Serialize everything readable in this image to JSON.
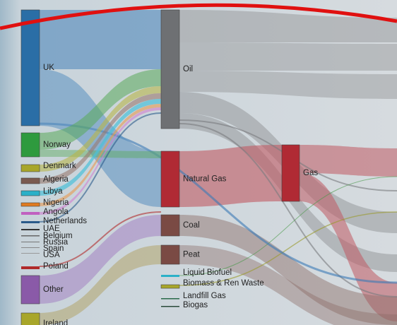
{
  "nodes": [
    {
      "label": "UK",
      "color": "#2a6ea6"
    },
    {
      "label": "Norway",
      "color": "#2e9a3e"
    },
    {
      "label": "Denmark",
      "color": "#a8a62a"
    },
    {
      "label": "Algeria",
      "color": "#7a5a50"
    },
    {
      "label": "Libya",
      "color": "#2bb0c8"
    },
    {
      "label": "Nigeria",
      "color": "#e07a20"
    },
    {
      "label": "Angola",
      "color": "#c060c0"
    },
    {
      "label": "Netherlands",
      "color": "#2a5a8a"
    },
    {
      "label": "UAE",
      "color": "#333333"
    },
    {
      "label": "Belgium",
      "color": "#666666"
    },
    {
      "label": "Russia",
      "color": "#777777"
    },
    {
      "label": "Spain",
      "color": "#888888"
    },
    {
      "label": "USA",
      "color": "#999999"
    },
    {
      "label": "Poland",
      "color": "#b02a2a"
    },
    {
      "label": "Other",
      "color": "#8a5aa8"
    },
    {
      "label": "Ireland",
      "color": "#a8a62a"
    },
    {
      "label": "Oil",
      "color": "#6e7073"
    },
    {
      "label": "Natural Gas",
      "color": "#b02a34"
    },
    {
      "label": "Coal",
      "color": "#7a4a44"
    },
    {
      "label": "Peat",
      "color": "#7a4a44"
    },
    {
      "label": "Liquid Biofuel",
      "color": "#2bb0c8"
    },
    {
      "label": "Biomass & Ren Waste",
      "color": "#a8a62a"
    },
    {
      "label": "Landfill Gas",
      "color": "#2a6a4a"
    },
    {
      "label": "Biogas",
      "color": "#2a4a3a"
    },
    {
      "label": "Gas",
      "color": "#b02a34"
    }
  ]
}
